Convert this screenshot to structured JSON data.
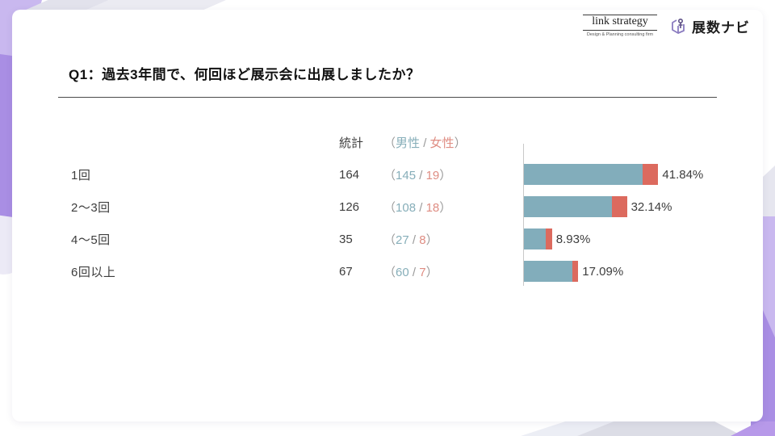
{
  "header": {
    "logo_link_strategy": {
      "title": "link strategy",
      "tagline": "Design & Planning consulting firm"
    },
    "logo_tensu_navi": {
      "title": "展数ナビ"
    }
  },
  "question": {
    "title": "Q1：過去3年間で、何回ほど展示会に出展しましたか？"
  },
  "table_header": {
    "total_label": "統計"
  },
  "punctuation": {
    "open": "（",
    "slash": " / ",
    "close": "）"
  },
  "chart_data": {
    "type": "bar",
    "title": "Q1：過去3年間で、何回ほど展示会に出展しましたか？",
    "categories": [
      "1回",
      "2〜3回",
      "4〜5回",
      "6回以上"
    ],
    "totals": [
      164,
      126,
      35,
      67
    ],
    "series": [
      {
        "name": "男性",
        "values": [
          145,
          108,
          27,
          60
        ]
      },
      {
        "name": "女性",
        "values": [
          19,
          18,
          8,
          7
        ]
      }
    ],
    "percents": [
      41.84,
      32.14,
      8.93,
      17.09
    ],
    "percent_labels": [
      "41.84%",
      "32.14%",
      "8.93%",
      "17.09%"
    ],
    "orientation": "horizontal",
    "stacked": true,
    "grid": false,
    "legend_position": "table-header",
    "colors": {
      "male": "#82adbb",
      "female": "#dc6a5e",
      "male_text": "#86aeb9",
      "female_text": "#df8d83",
      "accent_purple_mid": "#a98ee4",
      "accent_purple_light": "#c9b8ef",
      "accent_purple_light2": "#b799e9"
    }
  }
}
